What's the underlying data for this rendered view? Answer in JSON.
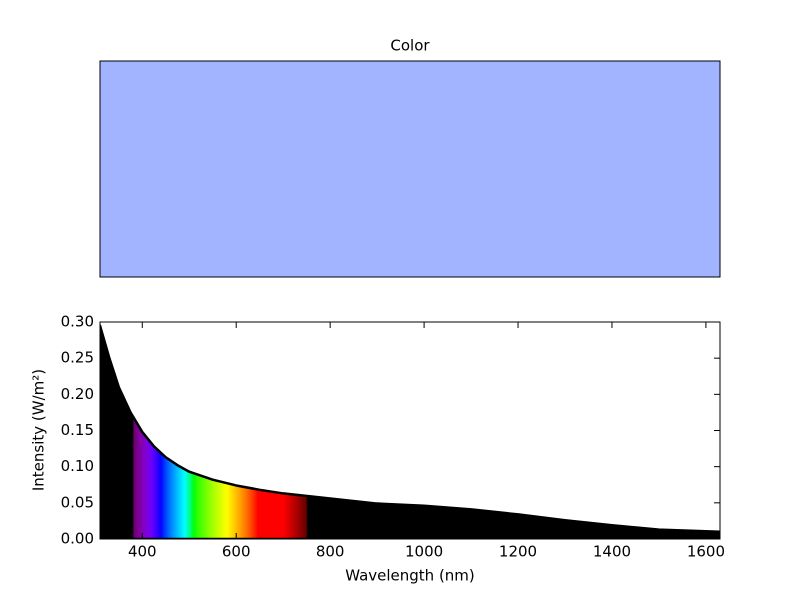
{
  "chart_data": [
    {
      "type": "swatch",
      "title": "Color",
      "color": "#a2b4ff"
    },
    {
      "type": "area",
      "xlabel": "Wavelength (nm)",
      "ylabel": "Intensity (W/m²)",
      "x": [
        310,
        330,
        350,
        375,
        400,
        425,
        450,
        475,
        500,
        550,
        600,
        650,
        700,
        800,
        900,
        1000,
        1100,
        1200,
        1300,
        1400,
        1500,
        1630
      ],
      "values": [
        0.295,
        0.25,
        0.21,
        0.175,
        0.148,
        0.128,
        0.113,
        0.102,
        0.093,
        0.082,
        0.074,
        0.068,
        0.063,
        0.056,
        0.049,
        0.046,
        0.041,
        0.034,
        0.026,
        0.019,
        0.013,
        0.01
      ],
      "color": "#000000",
      "xlim": [
        310,
        1630
      ],
      "xticks": [
        400,
        600,
        800,
        1000,
        1200,
        1400,
        1600
      ],
      "ylim": [
        0,
        0.3
      ],
      "yticks": [
        {
          "value": 0,
          "label": "0.00"
        },
        0.05,
        {
          "value": 0.1,
          "label": "0.10"
        },
        0.15,
        {
          "value": 0.2,
          "label": "0.20"
        },
        0.25,
        {
          "value": 0.3,
          "label": "0.30"
        }
      ]
    }
  ]
}
